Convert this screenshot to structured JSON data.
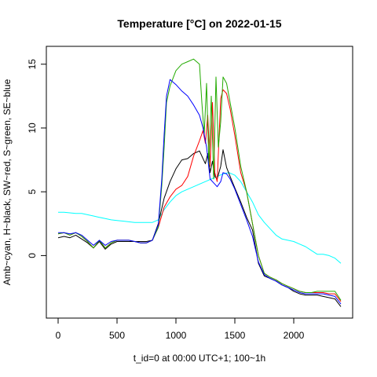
{
  "chart_data": {
    "type": "line",
    "title": "Temperature [°C] on 2022-01-15",
    "xlabel": "t_id=0 at 00:00 UTC+1; 100~1h",
    "ylabel": "Amb~cyan, H~black, SW~red, S~green, SE~blue",
    "xlim": [
      -100,
      2500
    ],
    "ylim": [
      -4.9,
      16.4
    ],
    "xticks": [
      0,
      500,
      1000,
      1500,
      2000
    ],
    "yticks": [
      0,
      5,
      10,
      15
    ],
    "grid": false,
    "legend": "none",
    "series": [
      {
        "color": "#00ffff",
        "x": [
          0,
          50,
          100,
          150,
          200,
          250,
          300,
          350,
          400,
          450,
          500,
          550,
          600,
          650,
          700,
          750,
          800,
          850,
          900,
          950,
          1000,
          1050,
          1100,
          1150,
          1200,
          1250,
          1300,
          1350,
          1400,
          1450,
          1500,
          1550,
          1600,
          1650,
          1700,
          1750,
          1800,
          1850,
          1900,
          1950,
          2000,
          2050,
          2100,
          2150,
          2200,
          2250,
          2300,
          2350,
          2400
        ],
        "y": [
          3.4,
          3.4,
          3.35,
          3.3,
          3.3,
          3.2,
          3.1,
          3.0,
          2.9,
          2.8,
          2.75,
          2.7,
          2.65,
          2.6,
          2.6,
          2.6,
          2.6,
          2.8,
          3.6,
          4.2,
          4.7,
          5.0,
          5.2,
          5.4,
          5.6,
          5.8,
          6.0,
          6.2,
          6.4,
          6.5,
          6.3,
          5.8,
          5.0,
          4.2,
          3.2,
          2.6,
          2.1,
          1.6,
          1.3,
          1.2,
          1.1,
          0.9,
          0.7,
          0.4,
          0.1,
          0.1,
          0.0,
          -0.2,
          -0.6
        ]
      },
      {
        "color": "#000000",
        "x": [
          0,
          50,
          100,
          150,
          200,
          250,
          300,
          350,
          400,
          450,
          500,
          550,
          600,
          650,
          700,
          750,
          800,
          850,
          900,
          950,
          1000,
          1050,
          1100,
          1150,
          1200,
          1230,
          1250,
          1270,
          1290,
          1310,
          1330,
          1350,
          1380,
          1400,
          1430,
          1460,
          1500,
          1550,
          1600,
          1650,
          1700,
          1750,
          1800,
          1850,
          1900,
          1950,
          2000,
          2050,
          2100,
          2150,
          2200,
          2250,
          2300,
          2350,
          2400
        ],
        "y": [
          1.4,
          1.5,
          1.4,
          1.6,
          1.3,
          1.0,
          0.6,
          1.1,
          0.5,
          0.9,
          1.1,
          1.1,
          1.1,
          1.1,
          1.1,
          1.1,
          1.2,
          2.5,
          4.5,
          5.8,
          6.8,
          7.5,
          7.6,
          8.0,
          8.2,
          7.6,
          7.2,
          8.0,
          6.5,
          7.4,
          6.2,
          6.0,
          7.0,
          8.3,
          6.9,
          6.2,
          5.3,
          4.2,
          3.0,
          2.0,
          -0.6,
          -1.6,
          -1.8,
          -2.0,
          -2.3,
          -2.5,
          -2.8,
          -3.0,
          -3.1,
          -3.1,
          -3.1,
          -3.2,
          -3.3,
          -3.4,
          -4.0
        ]
      },
      {
        "color": "#ff0000",
        "x": [
          0,
          50,
          100,
          150,
          200,
          250,
          300,
          350,
          400,
          450,
          500,
          550,
          600,
          650,
          700,
          750,
          800,
          850,
          900,
          950,
          1000,
          1050,
          1100,
          1150,
          1200,
          1230,
          1250,
          1270,
          1290,
          1310,
          1330,
          1350,
          1380,
          1400,
          1430,
          1460,
          1500,
          1550,
          1600,
          1650,
          1700,
          1750,
          1800,
          1850,
          1900,
          1950,
          2000,
          2050,
          2100,
          2150,
          2200,
          2250,
          2300,
          2350,
          2400
        ],
        "y": [
          1.7,
          1.8,
          1.6,
          1.8,
          1.5,
          1.1,
          0.6,
          1.2,
          0.6,
          1.0,
          1.2,
          1.2,
          1.2,
          1.1,
          1.0,
          1.0,
          1.2,
          2.2,
          3.8,
          4.6,
          5.2,
          5.5,
          6.2,
          7.8,
          9.0,
          9.8,
          8.8,
          11.0,
          7.0,
          12.0,
          6.5,
          5.8,
          12.3,
          13.0,
          12.7,
          11.5,
          9.4,
          6.5,
          5.0,
          2.5,
          0.0,
          -1.4,
          -1.7,
          -1.9,
          -2.2,
          -2.4,
          -2.6,
          -2.8,
          -2.9,
          -2.9,
          -2.9,
          -2.9,
          -3.0,
          -3.0,
          -3.6
        ]
      },
      {
        "color": "#22aa00",
        "x": [
          0,
          50,
          100,
          150,
          200,
          250,
          300,
          350,
          400,
          450,
          500,
          550,
          600,
          650,
          700,
          750,
          800,
          850,
          880,
          900,
          920,
          950,
          1000,
          1050,
          1100,
          1150,
          1200,
          1220,
          1240,
          1260,
          1280,
          1300,
          1320,
          1340,
          1360,
          1380,
          1400,
          1430,
          1460,
          1500,
          1550,
          1600,
          1650,
          1700,
          1750,
          1800,
          1850,
          1900,
          1950,
          2000,
          2050,
          2100,
          2150,
          2200,
          2250,
          2300,
          2350,
          2400
        ],
        "y": [
          1.7,
          1.8,
          1.6,
          1.8,
          1.5,
          1.1,
          0.6,
          1.2,
          0.6,
          1.0,
          1.2,
          1.2,
          1.2,
          1.1,
          1.0,
          1.0,
          1.2,
          2.2,
          5.5,
          8.5,
          12.0,
          13.3,
          14.5,
          15.0,
          15.2,
          15.4,
          15.0,
          12.0,
          9.5,
          13.5,
          7.0,
          12.5,
          6.0,
          14.0,
          8.5,
          10.5,
          14.0,
          13.5,
          12.0,
          10.0,
          7.0,
          5.0,
          2.5,
          0.0,
          -1.4,
          -1.7,
          -1.9,
          -2.2,
          -2.4,
          -2.6,
          -2.8,
          -2.9,
          -2.9,
          -2.8,
          -2.8,
          -2.8,
          -2.8,
          -3.5
        ]
      },
      {
        "color": "#0000ff",
        "x": [
          0,
          50,
          100,
          150,
          200,
          250,
          300,
          350,
          400,
          450,
          500,
          550,
          600,
          650,
          700,
          750,
          800,
          850,
          880,
          900,
          920,
          950,
          1000,
          1050,
          1100,
          1150,
          1200,
          1230,
          1260,
          1290,
          1320,
          1350,
          1380,
          1400,
          1430,
          1460,
          1500,
          1550,
          1600,
          1650,
          1700,
          1750,
          1800,
          1850,
          1900,
          1950,
          2000,
          2050,
          2100,
          2150,
          2200,
          2250,
          2300,
          2350,
          2400
        ],
        "y": [
          1.8,
          1.8,
          1.7,
          1.8,
          1.6,
          1.2,
          0.8,
          1.2,
          0.8,
          1.1,
          1.2,
          1.2,
          1.2,
          1.1,
          1.0,
          1.0,
          1.2,
          2.4,
          6.0,
          9.5,
          12.5,
          13.8,
          13.4,
          12.9,
          12.5,
          11.8,
          11.0,
          10.0,
          8.5,
          6.0,
          5.7,
          5.4,
          5.8,
          6.5,
          6.4,
          6.0,
          5.2,
          4.0,
          2.8,
          1.5,
          -0.5,
          -1.5,
          -1.8,
          -2.0,
          -2.3,
          -2.5,
          -2.7,
          -2.9,
          -3.0,
          -3.0,
          -3.0,
          -3.0,
          -3.1,
          -3.2,
          -3.8
        ]
      }
    ]
  }
}
